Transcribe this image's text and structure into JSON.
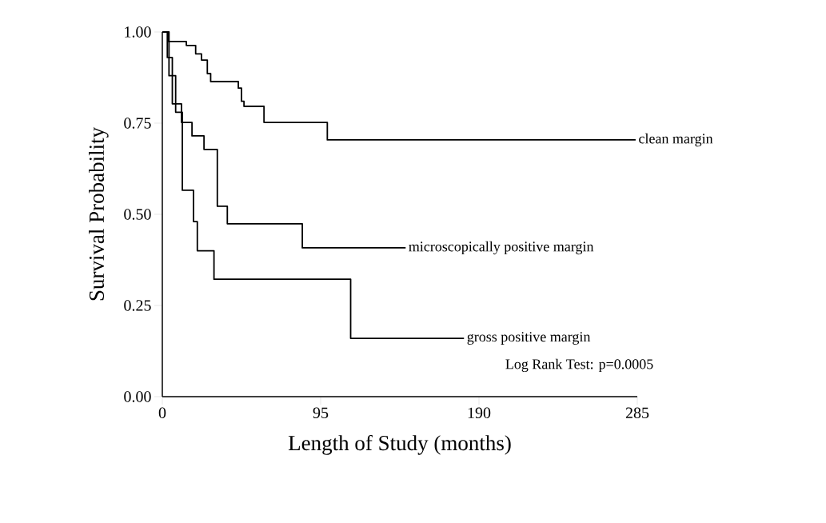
{
  "chart_data": {
    "type": "step",
    "xlabel": "Length of Study (months)",
    "ylabel": "Survival Probability",
    "xlim": [
      0,
      285
    ],
    "ylim": [
      0,
      1.0
    ],
    "xticks": [
      0,
      95,
      190,
      285
    ],
    "yticks": [
      {
        "value": 0,
        "label": "0.00"
      },
      {
        "value": 0.25,
        "label": "0.25"
      },
      {
        "value": 0.5,
        "label": "0.50"
      },
      {
        "value": 0.75,
        "label": "0.75"
      },
      {
        "value": 1.0,
        "label": "1.00"
      }
    ],
    "series": [
      {
        "name": "clean margin",
        "color": "#000000",
        "x": [
          0,
          3.4,
          14.4,
          20,
          23.5,
          27,
          29,
          45.6,
          47.5,
          49,
          61,
          99,
          284
        ],
        "values": [
          1.0,
          0.974,
          0.963,
          0.94,
          0.923,
          0.886,
          0.864,
          0.846,
          0.81,
          0.796,
          0.752,
          0.704,
          0.704
        ]
      },
      {
        "name": "microscopically positive margin",
        "color": "#000000",
        "x": [
          0,
          3,
          6,
          11.5,
          17.8,
          25,
          33,
          39,
          84,
          146
        ],
        "values": [
          1.0,
          0.93,
          0.803,
          0.752,
          0.715,
          0.678,
          0.522,
          0.474,
          0.408,
          0.408
        ]
      },
      {
        "name": "gross positive margin",
        "color": "#000000",
        "x": [
          0,
          4,
          8,
          12,
          18.7,
          21,
          31,
          113,
          181
        ],
        "values": [
          1.0,
          0.88,
          0.78,
          0.566,
          0.48,
          0.4,
          0.322,
          0.16,
          0.16
        ]
      }
    ],
    "annotations": [
      "Log Rank Test: p=0.0005"
    ],
    "grid": false,
    "marker": "none",
    "line_style": "solid"
  }
}
